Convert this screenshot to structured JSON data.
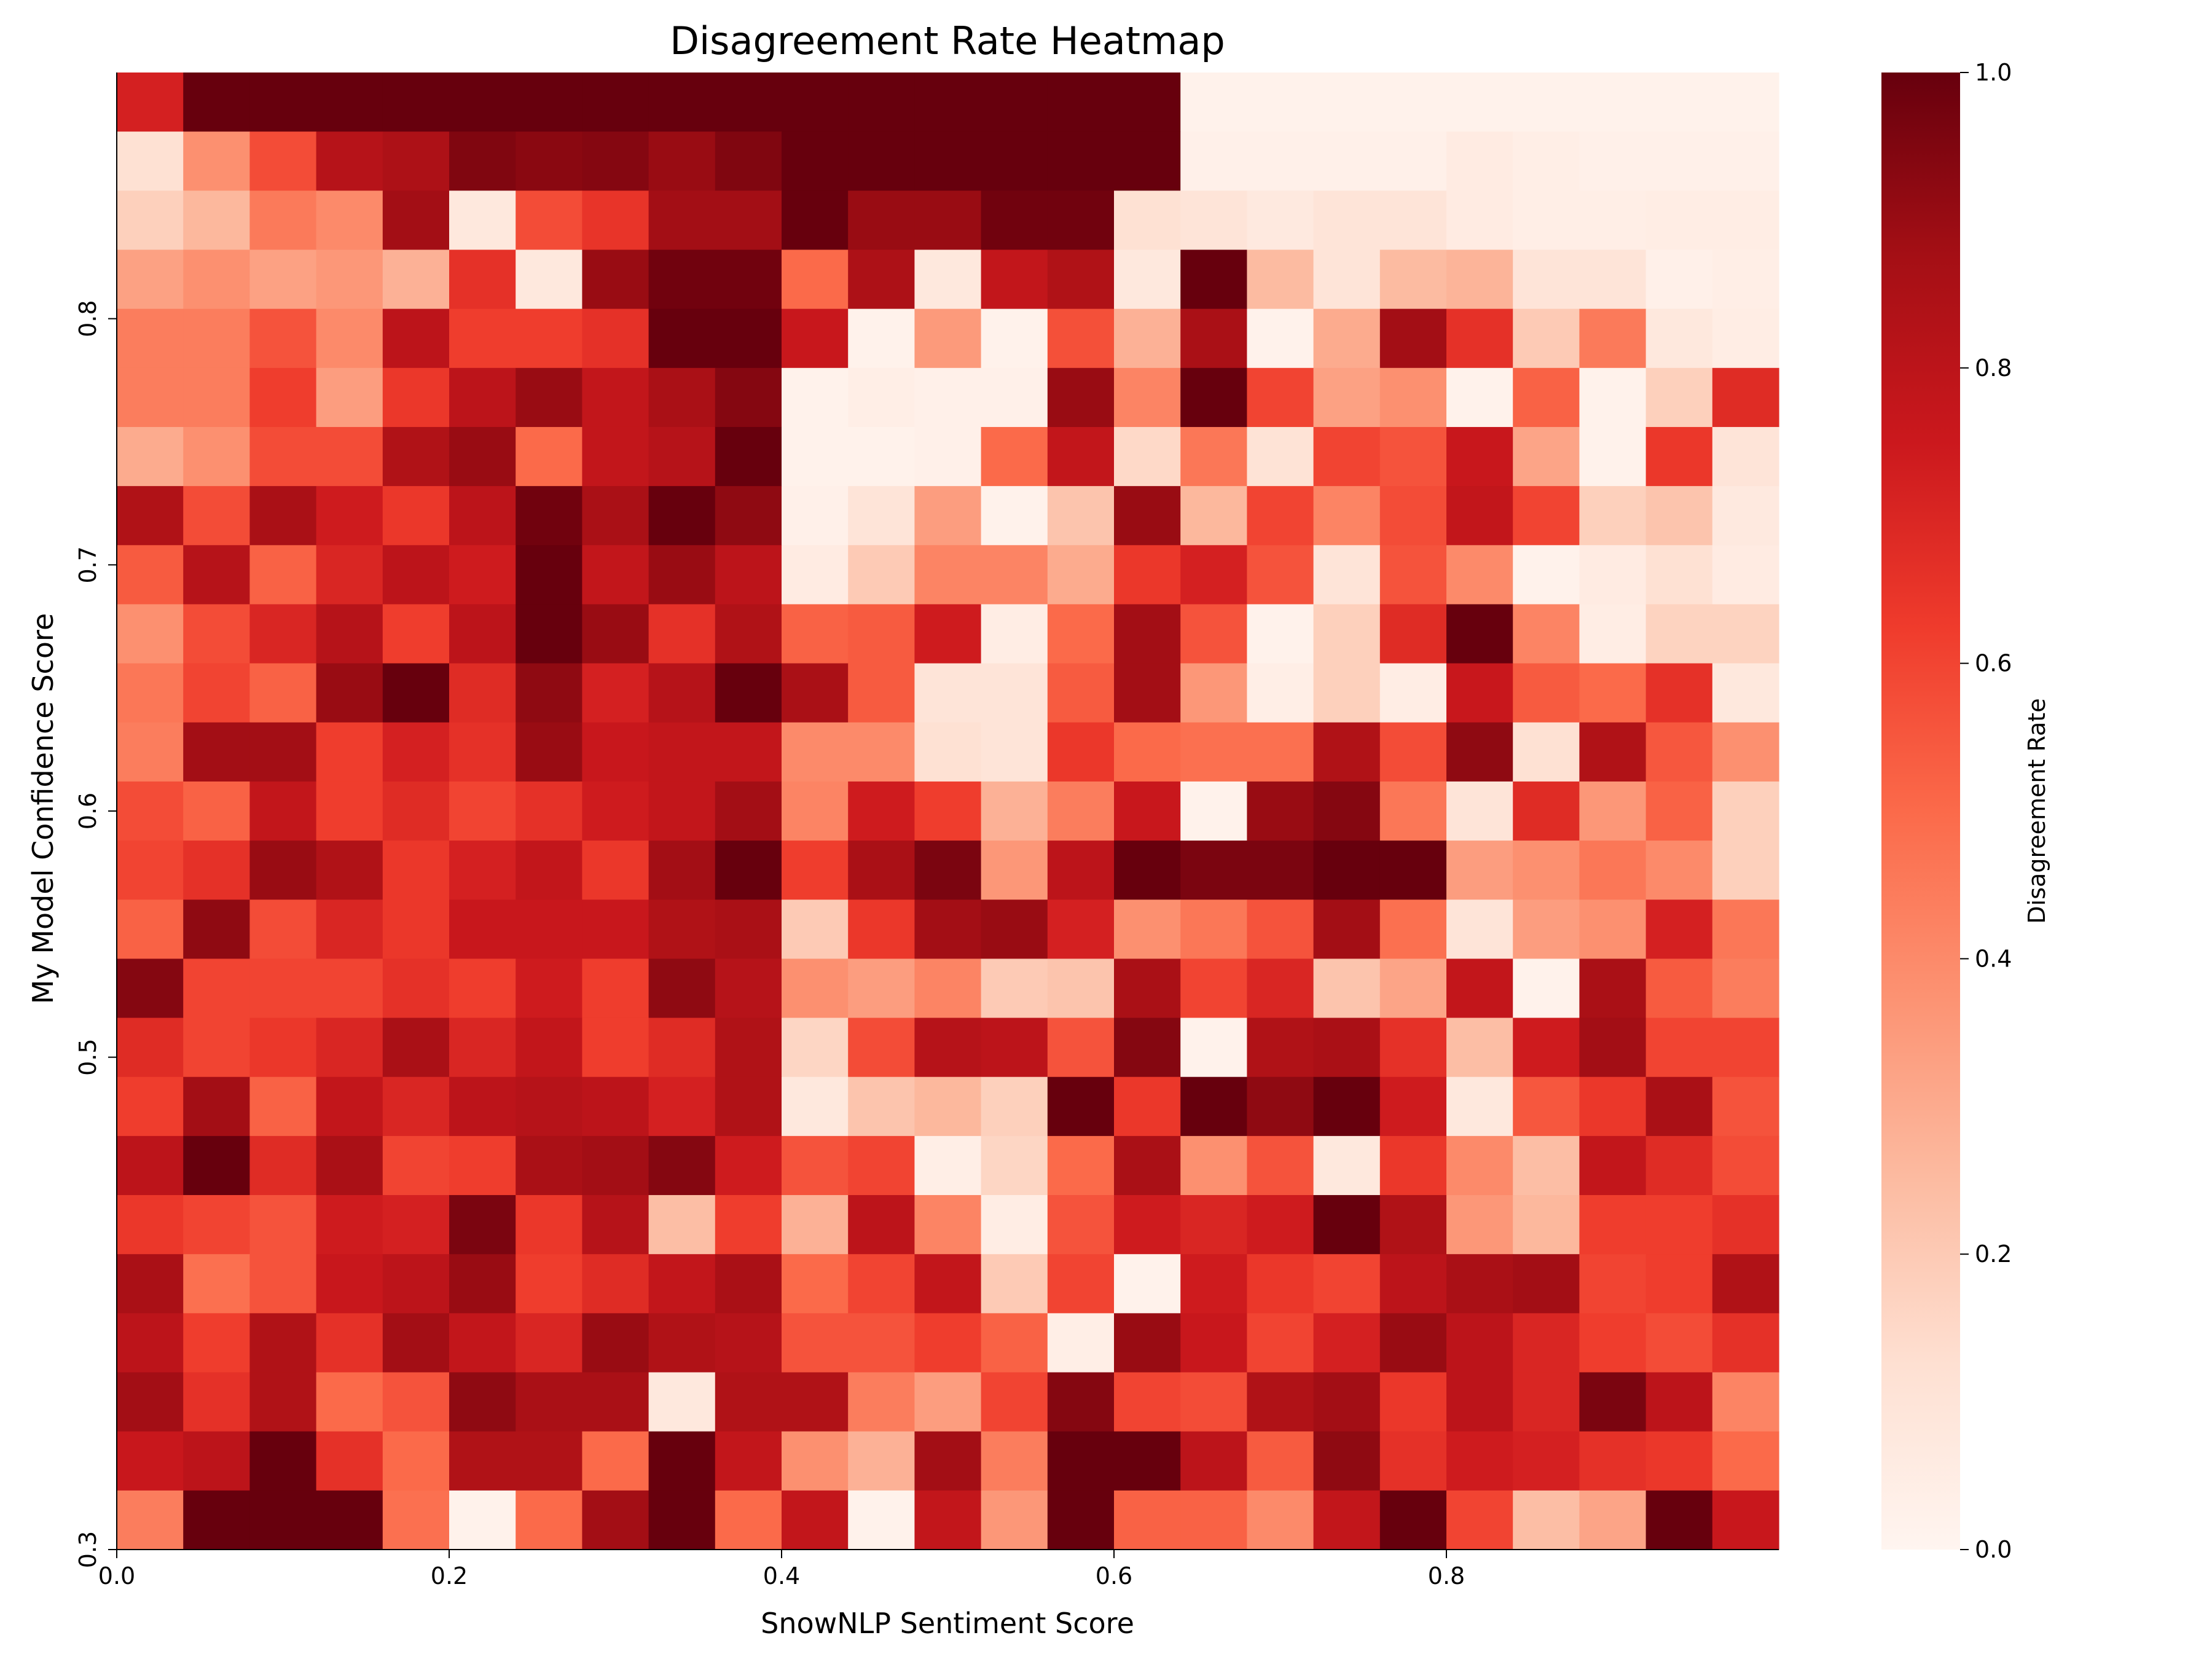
{
  "chart_data": {
    "type": "heatmap",
    "title": "Disagreement Rate Heatmap",
    "xlabel": "SnowNLP Sentiment Score",
    "ylabel": "My Model Confidence Score",
    "xlim": [
      0,
      1
    ],
    "ylim": [
      0.3,
      0.9
    ],
    "x_ticks": [
      0.0,
      0.2,
      0.4,
      0.6,
      0.8
    ],
    "x_tick_labels": [
      "0.0",
      "0.2",
      "0.4",
      "0.6",
      "0.8"
    ],
    "y_ticks": [
      0.3,
      0.5,
      0.6,
      0.7,
      0.8
    ],
    "y_tick_labels": [
      "0.3",
      "0.5",
      "0.6",
      "0.7",
      "0.8"
    ],
    "colorbar": {
      "label": "Disagreement Rate",
      "range": [
        0,
        1
      ],
      "ticks": [
        0.0,
        0.2,
        0.4,
        0.6,
        0.8,
        1.0
      ],
      "tick_labels": [
        "0.0",
        "0.2",
        "0.4",
        "0.6",
        "0.8",
        "1.0"
      ],
      "colormap": "Reds",
      "color_stops": [
        "#fff5f0",
        "#fee0d2",
        "#fcbba1",
        "#fc9272",
        "#fb6a4a",
        "#ef3b2c",
        "#cb181d",
        "#a50f15",
        "#67000d"
      ]
    },
    "grid": false,
    "row_order": "top-to-bottom",
    "rows": [
      [
        0.72,
        1.0,
        1.0,
        1.0,
        1.0,
        1.0,
        1.0,
        1.0,
        1.0,
        1.0,
        1.0,
        1.0,
        1.0,
        1.0,
        1.0,
        1.0,
        0.02,
        0.02,
        0.02,
        0.02,
        0.02,
        0.02,
        0.02,
        0.02,
        0.02
      ],
      [
        0.12,
        0.38,
        0.58,
        0.82,
        0.85,
        0.95,
        0.93,
        0.94,
        0.9,
        0.95,
        1.0,
        1.0,
        1.0,
        1.0,
        1.0,
        1.0,
        0.03,
        0.03,
        0.03,
        0.03,
        0.06,
        0.04,
        0.03,
        0.03,
        0.03
      ],
      [
        0.18,
        0.26,
        0.45,
        0.4,
        0.88,
        0.08,
        0.58,
        0.65,
        0.88,
        0.88,
        1.0,
        0.9,
        0.9,
        0.98,
        0.98,
        0.12,
        0.1,
        0.07,
        0.1,
        0.1,
        0.06,
        0.04,
        0.04,
        0.05,
        0.05
      ],
      [
        0.33,
        0.38,
        0.33,
        0.36,
        0.28,
        0.66,
        0.08,
        0.9,
        0.98,
        0.98,
        0.5,
        0.85,
        0.08,
        0.78,
        0.84,
        0.08,
        1.0,
        0.25,
        0.1,
        0.25,
        0.27,
        0.1,
        0.1,
        0.03,
        0.04
      ],
      [
        0.44,
        0.44,
        0.56,
        0.4,
        0.8,
        0.62,
        0.62,
        0.66,
        1.0,
        1.0,
        0.76,
        0.02,
        0.35,
        0.02,
        0.57,
        0.28,
        0.86,
        0.02,
        0.3,
        0.88,
        0.66,
        0.2,
        0.45,
        0.08,
        0.05
      ],
      [
        0.44,
        0.44,
        0.62,
        0.34,
        0.64,
        0.8,
        0.9,
        0.78,
        0.86,
        0.94,
        0.02,
        0.04,
        0.03,
        0.03,
        0.9,
        0.42,
        1.0,
        0.6,
        0.33,
        0.38,
        0.02,
        0.52,
        0.02,
        0.18,
        0.68
      ],
      [
        0.3,
        0.38,
        0.58,
        0.58,
        0.84,
        0.9,
        0.5,
        0.78,
        0.82,
        1.0,
        0.02,
        0.02,
        0.03,
        0.5,
        0.78,
        0.15,
        0.46,
        0.11,
        0.6,
        0.56,
        0.76,
        0.32,
        0.02,
        0.64,
        0.1
      ],
      [
        0.84,
        0.58,
        0.86,
        0.74,
        0.64,
        0.8,
        0.98,
        0.86,
        1.0,
        0.92,
        0.03,
        0.1,
        0.34,
        0.02,
        0.22,
        0.9,
        0.26,
        0.6,
        0.42,
        0.58,
        0.78,
        0.6,
        0.18,
        0.22,
        0.07
      ],
      [
        0.54,
        0.82,
        0.52,
        0.7,
        0.8,
        0.74,
        1.0,
        0.78,
        0.9,
        0.8,
        0.06,
        0.2,
        0.42,
        0.42,
        0.3,
        0.64,
        0.72,
        0.56,
        0.1,
        0.56,
        0.4,
        0.02,
        0.06,
        0.12,
        0.06
      ],
      [
        0.38,
        0.58,
        0.7,
        0.82,
        0.62,
        0.8,
        1.0,
        0.9,
        0.66,
        0.84,
        0.52,
        0.54,
        0.74,
        0.05,
        0.5,
        0.88,
        0.56,
        0.02,
        0.18,
        0.68,
        1.0,
        0.42,
        0.05,
        0.17,
        0.17
      ],
      [
        0.46,
        0.6,
        0.52,
        0.9,
        1.0,
        0.68,
        0.92,
        0.72,
        0.82,
        1.0,
        0.86,
        0.54,
        0.1,
        0.1,
        0.54,
        0.88,
        0.36,
        0.04,
        0.18,
        0.05,
        0.76,
        0.54,
        0.5,
        0.66,
        0.08
      ],
      [
        0.44,
        0.88,
        0.88,
        0.62,
        0.72,
        0.66,
        0.9,
        0.76,
        0.78,
        0.78,
        0.4,
        0.4,
        0.12,
        0.1,
        0.64,
        0.5,
        0.48,
        0.48,
        0.84,
        0.58,
        0.92,
        0.12,
        0.84,
        0.55,
        0.38
      ],
      [
        0.58,
        0.52,
        0.78,
        0.62,
        0.68,
        0.6,
        0.66,
        0.74,
        0.78,
        0.88,
        0.42,
        0.74,
        0.62,
        0.28,
        0.44,
        0.76,
        0.02,
        0.9,
        0.94,
        0.46,
        0.1,
        0.68,
        0.36,
        0.52,
        0.18
      ],
      [
        0.6,
        0.66,
        0.9,
        0.84,
        0.64,
        0.72,
        0.78,
        0.64,
        0.88,
        1.0,
        0.62,
        0.86,
        0.96,
        0.36,
        0.8,
        1.0,
        0.96,
        0.96,
        1.0,
        1.0,
        0.34,
        0.38,
        0.46,
        0.4,
        0.18
      ],
      [
        0.52,
        0.92,
        0.58,
        0.7,
        0.64,
        0.76,
        0.76,
        0.76,
        0.84,
        0.86,
        0.2,
        0.64,
        0.88,
        0.9,
        0.72,
        0.38,
        0.46,
        0.56,
        0.88,
        0.48,
        0.1,
        0.34,
        0.38,
        0.72,
        0.46
      ],
      [
        0.94,
        0.6,
        0.6,
        0.6,
        0.66,
        0.62,
        0.74,
        0.62,
        0.92,
        0.82,
        0.38,
        0.34,
        0.42,
        0.2,
        0.22,
        0.86,
        0.6,
        0.7,
        0.22,
        0.32,
        0.78,
        0.02,
        0.86,
        0.54,
        0.44
      ],
      [
        0.68,
        0.6,
        0.64,
        0.7,
        0.86,
        0.7,
        0.78,
        0.62,
        0.68,
        0.84,
        0.16,
        0.58,
        0.82,
        0.8,
        0.56,
        0.94,
        0.02,
        0.84,
        0.86,
        0.66,
        0.24,
        0.74,
        0.88,
        0.6,
        0.6
      ],
      [
        0.62,
        0.88,
        0.52,
        0.78,
        0.7,
        0.8,
        0.82,
        0.8,
        0.72,
        0.84,
        0.08,
        0.22,
        0.26,
        0.18,
        1.0,
        0.64,
        1.0,
        0.92,
        1.0,
        0.74,
        0.08,
        0.55,
        0.64,
        0.86,
        0.56
      ],
      [
        0.8,
        1.0,
        0.68,
        0.86,
        0.6,
        0.62,
        0.86,
        0.88,
        0.94,
        0.74,
        0.56,
        0.6,
        0.04,
        0.16,
        0.5,
        0.86,
        0.38,
        0.56,
        0.08,
        0.64,
        0.4,
        0.24,
        0.78,
        0.68,
        0.58
      ],
      [
        0.64,
        0.6,
        0.56,
        0.74,
        0.72,
        0.96,
        0.64,
        0.82,
        0.24,
        0.62,
        0.28,
        0.8,
        0.42,
        0.05,
        0.56,
        0.74,
        0.7,
        0.74,
        1.0,
        0.84,
        0.36,
        0.26,
        0.62,
        0.62,
        0.66
      ],
      [
        0.86,
        0.48,
        0.56,
        0.76,
        0.8,
        0.9,
        0.62,
        0.68,
        0.78,
        0.86,
        0.5,
        0.6,
        0.78,
        0.2,
        0.6,
        0.02,
        0.74,
        0.64,
        0.6,
        0.8,
        0.86,
        0.88,
        0.6,
        0.62,
        0.84
      ],
      [
        0.8,
        0.62,
        0.84,
        0.66,
        0.88,
        0.78,
        0.7,
        0.9,
        0.84,
        0.82,
        0.56,
        0.56,
        0.62,
        0.52,
        0.04,
        0.9,
        0.76,
        0.6,
        0.72,
        0.9,
        0.8,
        0.7,
        0.62,
        0.58,
        0.66
      ],
      [
        0.88,
        0.66,
        0.84,
        0.5,
        0.56,
        0.92,
        0.86,
        0.86,
        0.08,
        0.84,
        0.84,
        0.44,
        0.34,
        0.6,
        0.94,
        0.6,
        0.58,
        0.84,
        0.88,
        0.64,
        0.8,
        0.7,
        0.96,
        0.8,
        0.42
      ],
      [
        0.76,
        0.8,
        1.0,
        0.66,
        0.5,
        0.84,
        0.84,
        0.5,
        1.0,
        0.78,
        0.38,
        0.28,
        0.88,
        0.44,
        1.0,
        1.0,
        0.8,
        0.54,
        0.92,
        0.66,
        0.74,
        0.72,
        0.66,
        0.64,
        0.5
      ],
      [
        0.44,
        1.0,
        1.0,
        1.0,
        0.48,
        0.02,
        0.5,
        0.88,
        1.0,
        0.5,
        0.78,
        0.02,
        0.78,
        0.36,
        1.0,
        0.52,
        0.52,
        0.4,
        0.78,
        1.0,
        0.6,
        0.24,
        0.32,
        1.0,
        0.76
      ]
    ]
  }
}
